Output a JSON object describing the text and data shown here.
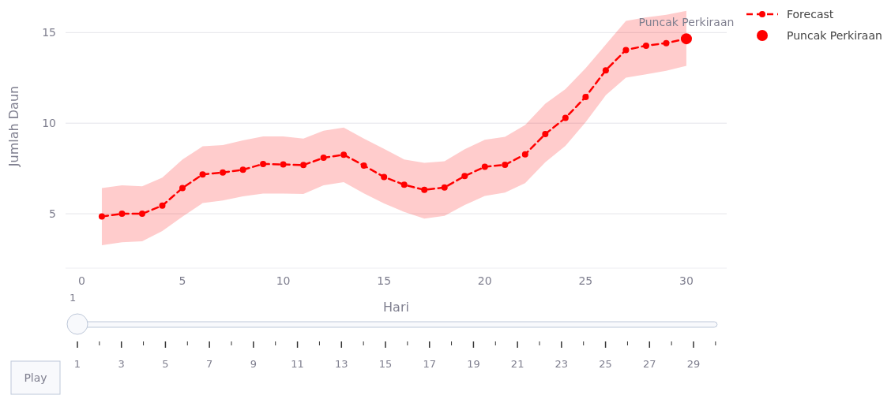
{
  "chart_data": {
    "type": "line",
    "xlabel": "Hari",
    "ylabel": "Jumlah Daun",
    "xlim": [
      -0.8,
      32
    ],
    "ylim": [
      2,
      16.8
    ],
    "xticks": [
      0,
      5,
      10,
      15,
      20,
      25,
      30
    ],
    "yticks": [
      5,
      10,
      15
    ],
    "grid": "y",
    "legend": "top right",
    "marker": "circle",
    "line_style": "dashed",
    "x2lim": [
      1,
      29
    ],
    "x2ticks": [
      1,
      3,
      5,
      7,
      9,
      11,
      13,
      15,
      17,
      19,
      21,
      23,
      25,
      27,
      29
    ],
    "series": [
      {
        "name": "Forecast",
        "type": "line",
        "color": "#ff0000",
        "x": [
          1,
          2,
          3,
          4,
          5,
          6,
          7,
          8,
          9,
          10,
          11,
          12,
          13,
          14,
          15,
          16,
          17,
          18,
          19,
          20,
          21,
          22,
          23,
          24,
          25,
          26,
          27,
          28,
          29,
          30
        ],
        "values": [
          4.85,
          5.0,
          5.0,
          5.45,
          6.42,
          7.17,
          7.28,
          7.43,
          7.75,
          7.72,
          7.69,
          8.09,
          8.26,
          7.66,
          7.03,
          6.6,
          6.32,
          6.45,
          7.08,
          7.59,
          7.7,
          8.28,
          9.4,
          10.29,
          11.45,
          12.92,
          14.04,
          14.28,
          14.42,
          14.66
        ],
        "lower": [
          3.26,
          3.43,
          3.48,
          4.05,
          4.84,
          5.59,
          5.73,
          5.96,
          6.11,
          6.11,
          6.09,
          6.57,
          6.74,
          6.12,
          5.57,
          5.1,
          4.73,
          4.88,
          5.48,
          5.98,
          6.17,
          6.69,
          7.84,
          8.75,
          10.05,
          11.54,
          12.51,
          12.7,
          12.89,
          13.17
        ],
        "upper": [
          6.42,
          6.57,
          6.52,
          7.0,
          8.0,
          8.72,
          8.79,
          9.05,
          9.27,
          9.27,
          9.15,
          9.58,
          9.76,
          9.15,
          8.58,
          8.0,
          7.81,
          7.9,
          8.56,
          9.08,
          9.25,
          9.9,
          11.08,
          11.88,
          13.03,
          14.34,
          15.65,
          15.84,
          15.98,
          16.2
        ]
      },
      {
        "name": "Puncak Perkiraan",
        "type": "scatter",
        "color": "#ff0000",
        "x": [
          30
        ],
        "values": [
          14.66
        ]
      }
    ],
    "annotations": [
      {
        "text": "Puncak Perkiraan",
        "x": 30,
        "y": 14.66
      },
      "1",
      "Play"
    ]
  }
}
